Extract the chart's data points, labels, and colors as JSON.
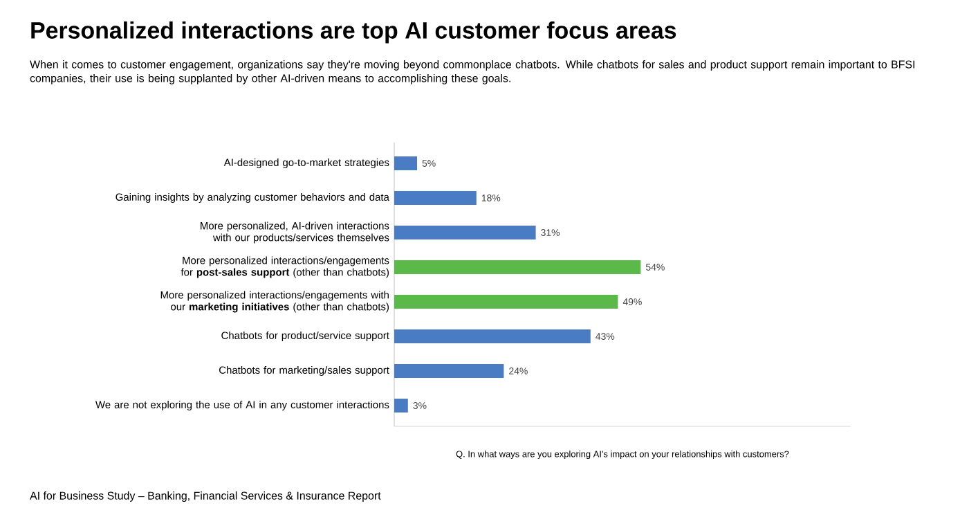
{
  "chart_data": {
    "type": "bar",
    "orientation": "horizontal",
    "title": "Personalized interactions are top AI customer focus areas",
    "subtitle": "When it comes to customer engagement, organizations say they're moving beyond commonplace chatbots. While chatbots for sales and product support remain important to BFSI companies, their use is being supplanted by other AI-driven means to accomplishing these goals.",
    "categories": [
      "AI-designed go-to-market strategies",
      "Gaining insights by analyzing customer behaviors and data",
      "More personalized, AI-driven interactions with our products/services themselves",
      "More personalized interactions/engagements for **post-sales support** (other than chatbots)",
      "More personalized interactions/engagements with our **marketing initiatives** (other than chatbots)",
      "Chatbots for product/service support",
      "Chatbots for marketing/sales support",
      "We are not exploring the use of AI in any customer interactions"
    ],
    "values": [
      5,
      18,
      31,
      54,
      49,
      43,
      24,
      3
    ],
    "colors": [
      "#4a7cc4",
      "#4a7cc4",
      "#4a7cc4",
      "#5bb94a",
      "#5bb94a",
      "#4a7cc4",
      "#4a7cc4",
      "#4a7cc4"
    ],
    "value_labels": [
      "5%",
      "18%",
      "31%",
      "54%",
      "49%",
      "43%",
      "24%",
      "3%"
    ],
    "xlim": [
      0,
      100
    ],
    "annotations": [
      "Q. In what ways are you exploring AI's impact on your relationships with customers?",
      "AI for Business Study – Banking, Financial Services & Insurance Report"
    ]
  }
}
